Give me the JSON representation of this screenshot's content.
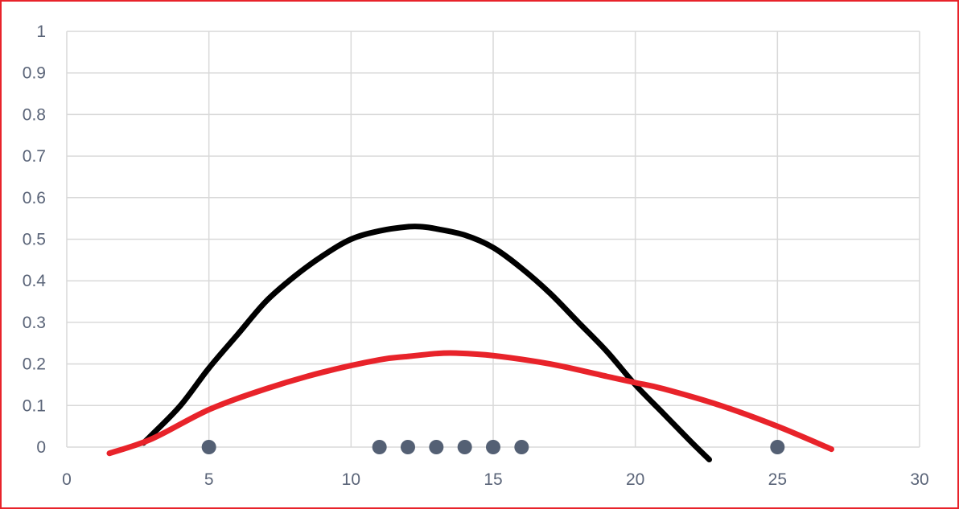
{
  "chart_data": {
    "type": "scatter",
    "title": "",
    "xlabel": "",
    "ylabel": "",
    "xlim": [
      0,
      30
    ],
    "ylim": [
      0,
      1
    ],
    "x_ticks": [
      0,
      5,
      10,
      15,
      20,
      25,
      30
    ],
    "y_ticks": [
      0,
      0.1,
      0.2,
      0.3,
      0.4,
      0.5,
      0.6,
      0.7,
      0.8,
      0.9,
      1
    ],
    "x_tick_labels": [
      "0",
      "5",
      "10",
      "15",
      "20",
      "25",
      "30"
    ],
    "y_tick_labels": [
      "0",
      "0.1",
      "0.2",
      "0.3",
      "0.4",
      "0.5",
      "0.6",
      "0.7",
      "0.8",
      "0.9",
      "1"
    ],
    "grid": true,
    "legend": "none",
    "series": [
      {
        "kind": "points",
        "color": "#546074",
        "x": [
          5,
          11,
          12,
          13,
          14,
          15,
          16,
          25
        ],
        "y": [
          0,
          0,
          0,
          0,
          0,
          0,
          0,
          0
        ]
      },
      {
        "kind": "curve",
        "color": "#000000",
        "x": [
          2.7,
          3,
          4,
          5,
          6,
          7,
          8,
          9,
          10,
          11,
          12,
          12.5,
          13,
          14,
          15,
          16,
          17,
          18,
          19,
          20,
          21,
          22,
          22.6
        ],
        "y": [
          0.01,
          0.03,
          0.1,
          0.19,
          0.27,
          0.35,
          0.41,
          0.46,
          0.5,
          0.52,
          0.53,
          0.53,
          0.525,
          0.51,
          0.48,
          0.43,
          0.37,
          0.3,
          0.23,
          0.15,
          0.08,
          0.01,
          -0.03
        ]
      },
      {
        "kind": "curve",
        "color": "#e8232a",
        "x": [
          1.5,
          3,
          5,
          7,
          9,
          11,
          12,
          13,
          13.7,
          15,
          17,
          19,
          20,
          21,
          23,
          25,
          26.9
        ],
        "y": [
          -0.015,
          0.02,
          0.09,
          0.14,
          0.18,
          0.21,
          0.218,
          0.225,
          0.226,
          0.22,
          0.2,
          0.17,
          0.155,
          0.14,
          0.1,
          0.05,
          -0.005
        ]
      }
    ]
  }
}
